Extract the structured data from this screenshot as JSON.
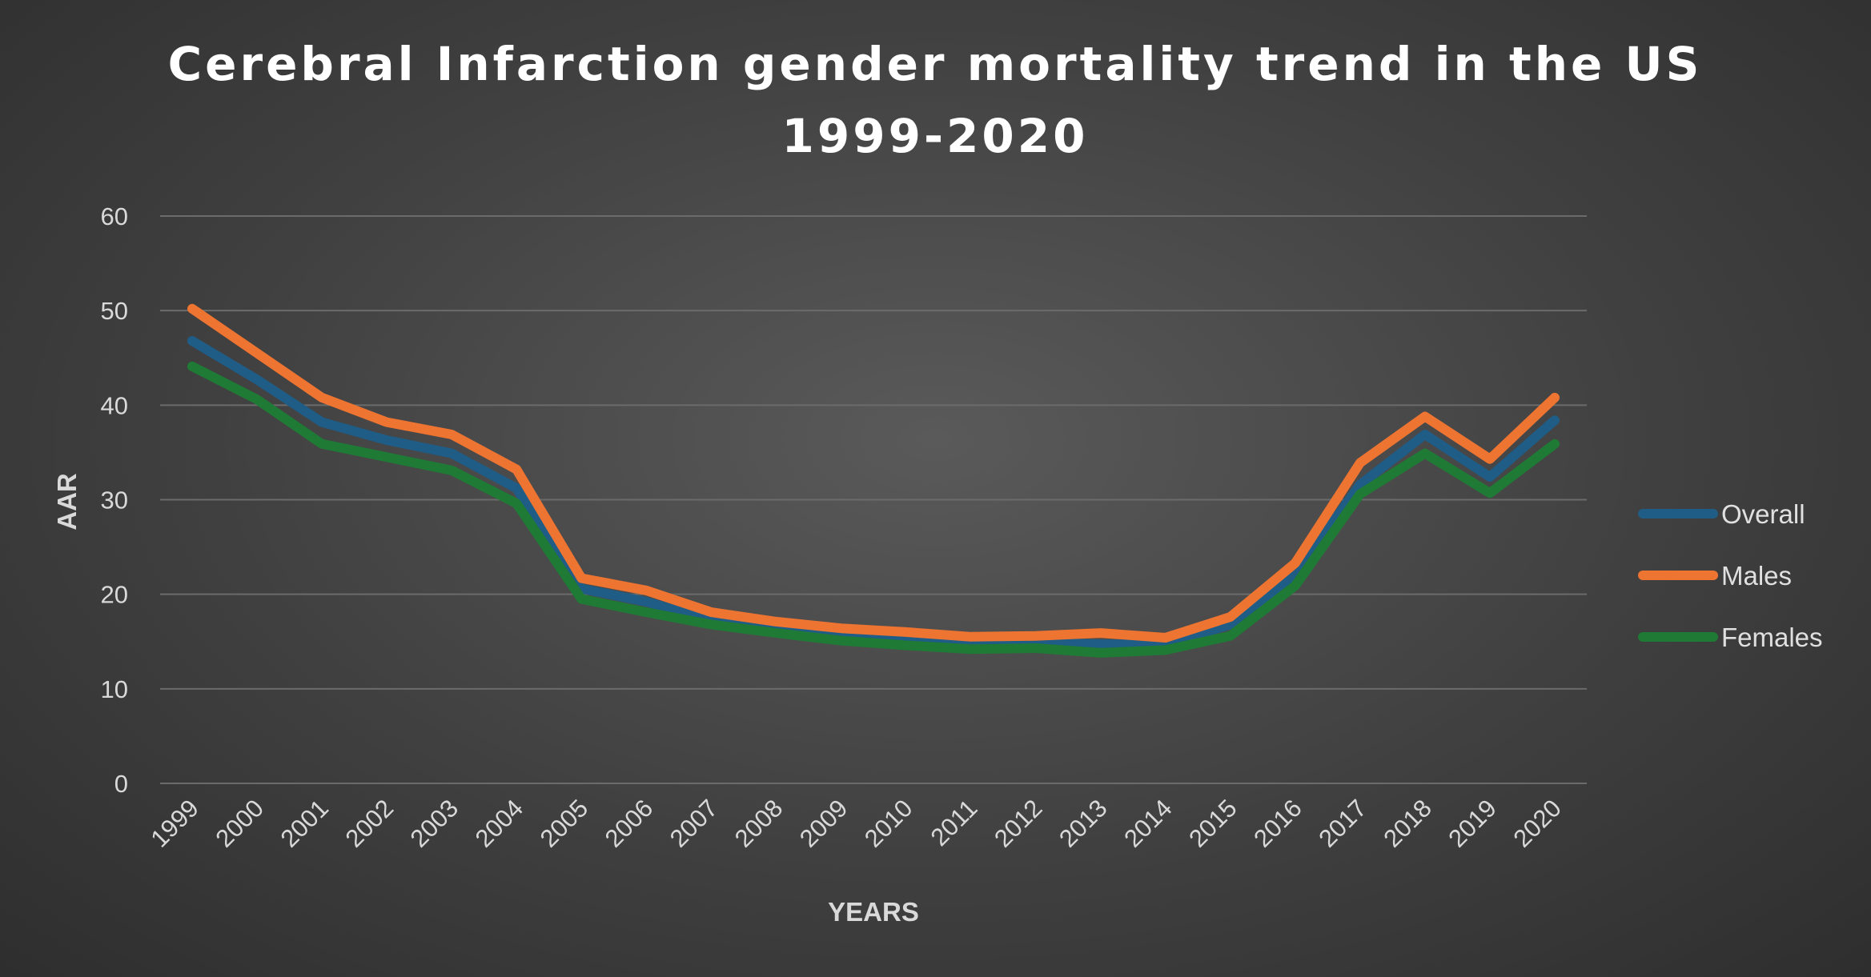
{
  "chart_data": {
    "type": "line",
    "title_lines": [
      "Cerebral Infarction gender mortality trend in the US",
      "1999-2020"
    ],
    "xlabel": "YEARS",
    "ylabel": "AAR",
    "ylim": [
      0,
      60
    ],
    "yticks": [
      "0",
      "10",
      "20",
      "30",
      "40",
      "50",
      "60"
    ],
    "grid": true,
    "legend_position": "right",
    "categories": [
      "1999",
      "2000",
      "2001",
      "2002",
      "2003",
      "2004",
      "2005",
      "2006",
      "2007",
      "2008",
      "2009",
      "2010",
      "2011",
      "2012",
      "2013",
      "2014",
      "2015",
      "2016",
      "2017",
      "2018",
      "2019",
      "2020"
    ],
    "series": [
      {
        "name": "Overall",
        "color": "#1f5c86",
        "values": [
          46.8,
          42.7,
          38.2,
          36.3,
          34.9,
          31.2,
          20.6,
          19.2,
          17.3,
          16.3,
          15.5,
          15.0,
          14.8,
          14.9,
          14.7,
          14.7,
          16.8,
          22.1,
          31.6,
          36.9,
          32.4,
          38.4
        ]
      },
      {
        "name": "Males",
        "color": "#ed7431",
        "values": [
          50.2,
          45.5,
          40.8,
          38.2,
          36.9,
          33.2,
          21.7,
          20.4,
          18.1,
          17.1,
          16.4,
          16.0,
          15.5,
          15.6,
          15.9,
          15.4,
          17.6,
          23.3,
          33.9,
          38.8,
          34.3,
          40.8
        ]
      },
      {
        "name": "Females",
        "color": "#1f7a35",
        "values": [
          44.1,
          40.6,
          35.9,
          34.5,
          33.1,
          29.6,
          19.5,
          18.1,
          16.8,
          15.9,
          15.1,
          14.6,
          14.2,
          14.3,
          13.8,
          14.1,
          15.6,
          20.9,
          30.6,
          34.9,
          30.7,
          35.9
        ]
      }
    ]
  }
}
